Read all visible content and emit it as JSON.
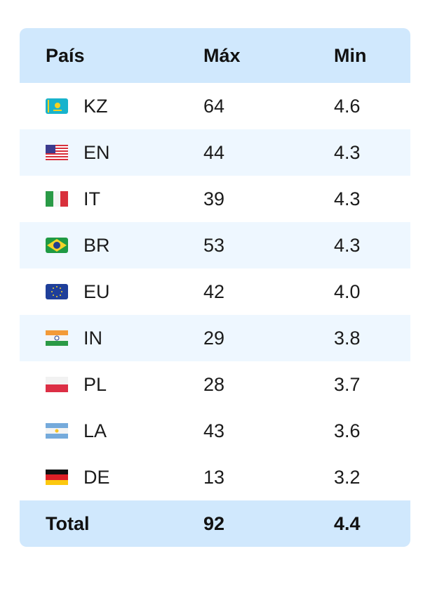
{
  "table": {
    "header": [
      "País",
      "Máx",
      "Min"
    ],
    "rows": [
      [
        "KZ",
        "64",
        "4.6"
      ],
      [
        "EN",
        "44",
        "4.3"
      ],
      [
        "IT",
        "39",
        "4.3"
      ],
      [
        "BR",
        "53",
        "4.3"
      ],
      [
        "EU",
        "42",
        "4.0"
      ],
      [
        "IN",
        "29",
        "3.8"
      ],
      [
        "PL",
        "28",
        "3.7"
      ],
      [
        "LA",
        "43",
        "3.6"
      ],
      [
        "DE",
        "13",
        "3.2"
      ]
    ],
    "total": [
      "Total",
      "92",
      "4.4"
    ]
  }
}
